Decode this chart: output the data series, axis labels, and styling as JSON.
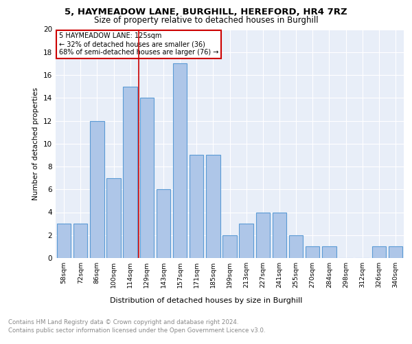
{
  "title1": "5, HAYMEADOW LANE, BURGHILL, HEREFORD, HR4 7RZ",
  "title2": "Size of property relative to detached houses in Burghill",
  "xlabel": "Distribution of detached houses by size in Burghill",
  "ylabel": "Number of detached properties",
  "categories": [
    "58sqm",
    "72sqm",
    "86sqm",
    "100sqm",
    "114sqm",
    "129sqm",
    "143sqm",
    "157sqm",
    "171sqm",
    "185sqm",
    "199sqm",
    "213sqm",
    "227sqm",
    "241sqm",
    "255sqm",
    "270sqm",
    "284sqm",
    "298sqm",
    "312sqm",
    "326sqm",
    "340sqm"
  ],
  "values": [
    3,
    3,
    12,
    7,
    15,
    14,
    6,
    17,
    9,
    9,
    2,
    3,
    4,
    4,
    2,
    1,
    1,
    0,
    0,
    1,
    1
  ],
  "bar_color": "#aec6e8",
  "bar_edge_color": "#5b9bd5",
  "property_line_x": 4.5,
  "annotation_line": "5 HAYMEADOW LANE: 125sqm",
  "annotation1": "← 32% of detached houses are smaller (36)",
  "annotation2": "68% of semi-detached houses are larger (76) →",
  "box_color": "#cc0000",
  "ylim": [
    0,
    20
  ],
  "yticks": [
    0,
    2,
    4,
    6,
    8,
    10,
    12,
    14,
    16,
    18,
    20
  ],
  "footer1": "Contains HM Land Registry data © Crown copyright and database right 2024.",
  "footer2": "Contains public sector information licensed under the Open Government Licence v3.0.",
  "background_color": "#e8eef8"
}
